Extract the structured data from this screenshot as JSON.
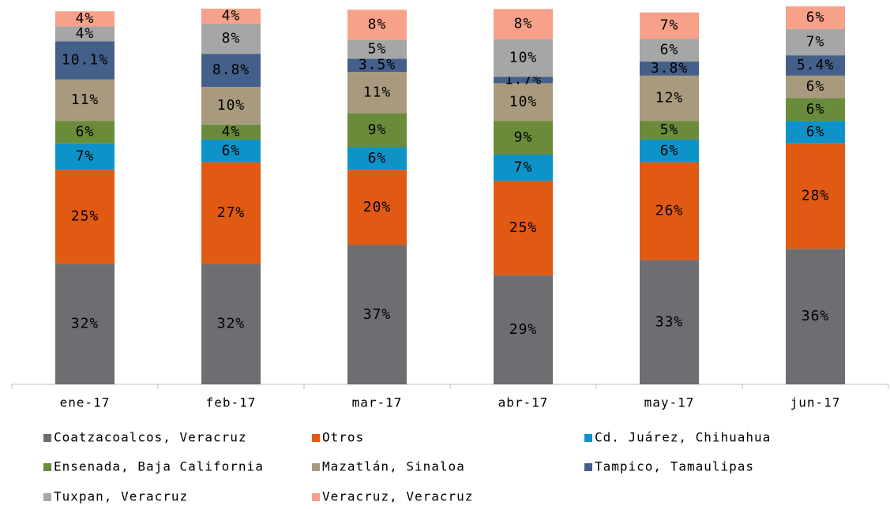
{
  "chart_data": {
    "type": "stacked_bar",
    "categories": [
      "ene-17",
      "feb-17",
      "mar-17",
      "abr-17",
      "may-17",
      "jun-17"
    ],
    "ylim": [
      0,
      100
    ],
    "series": [
      {
        "name": "Coatzacoalcos, Veracruz",
        "color": "#6d6e71",
        "values": [
          32,
          32,
          37,
          29,
          33,
          36
        ],
        "value_labels": [
          "32%",
          "32%",
          "37%",
          "29%",
          "33%",
          "36%"
        ]
      },
      {
        "name": "Otros",
        "color": "#e05a14",
        "values": [
          25,
          27,
          20,
          25,
          26,
          28
        ],
        "value_labels": [
          "25%",
          "27%",
          "20%",
          "25%",
          "26%",
          "28%"
        ]
      },
      {
        "name": "Cd. Juárez, Chihuahua",
        "color": "#0e93c8",
        "values": [
          7,
          6,
          6,
          7,
          6,
          6
        ],
        "value_labels": [
          "7%",
          "6%",
          "6%",
          "7%",
          "6%",
          "6%"
        ]
      },
      {
        "name": "Ensenada, Baja California",
        "color": "#6a8c3a",
        "values": [
          6,
          4,
          9,
          9,
          5,
          6
        ],
        "value_labels": [
          "6%",
          "4%",
          "9%",
          "9%",
          "5%",
          "6%"
        ]
      },
      {
        "name": "Mazatlán, Sinaloa",
        "color": "#a89a7e",
        "values": [
          11,
          10,
          11,
          10,
          12,
          6
        ],
        "value_labels": [
          "11%",
          "10%",
          "11%",
          "10%",
          "12%",
          "6%"
        ]
      },
      {
        "name": "Tampico, Tamaulipas",
        "color": "#44608a",
        "values": [
          10.1,
          8.8,
          3.5,
          1.7,
          3.8,
          5.4
        ],
        "value_labels": [
          "10.1%",
          "8.8%",
          "3.5%",
          "1.7%",
          "3.8%",
          "5.4%"
        ]
      },
      {
        "name": "Tuxpan, Veracruz",
        "color": "#a6a6a6",
        "values": [
          4,
          8,
          5,
          10,
          6,
          7
        ],
        "value_labels": [
          "4%",
          "8%",
          "5%",
          "10%",
          "6%",
          "7%"
        ]
      },
      {
        "name": "Veracruz, Veracruz",
        "color": "#f7a18a",
        "values": [
          4,
          4,
          8,
          8,
          7,
          6
        ],
        "value_labels": [
          "4%",
          "4%",
          "8%",
          "8%",
          "7%",
          "6%"
        ]
      }
    ]
  }
}
